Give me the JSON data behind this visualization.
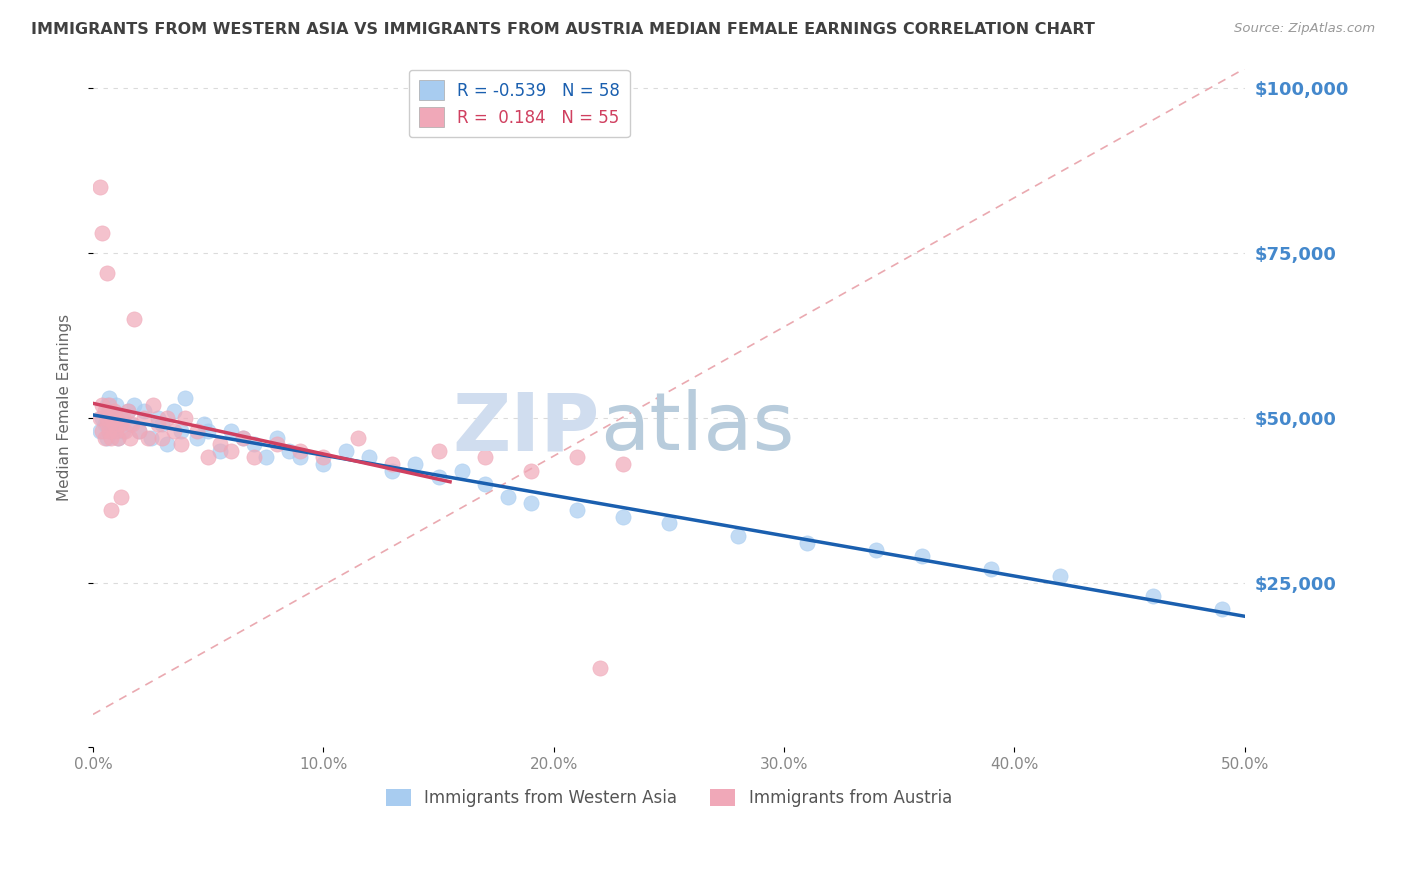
{
  "title": "IMMIGRANTS FROM WESTERN ASIA VS IMMIGRANTS FROM AUSTRIA MEDIAN FEMALE EARNINGS CORRELATION CHART",
  "source": "Source: ZipAtlas.com",
  "ylabel": "Median Female Earnings",
  "yticks": [
    0,
    25000,
    50000,
    75000,
    100000
  ],
  "ytick_labels": [
    "",
    "$25,000",
    "$50,000",
    "$75,000",
    "$100,000"
  ],
  "xmin": 0.0,
  "xmax": 0.5,
  "ymin": 5000,
  "ymax": 103000,
  "legend1_label": "Immigrants from Western Asia",
  "legend2_label": "Immigrants from Austria",
  "R1": -0.539,
  "N1": 58,
  "R2": 0.184,
  "N2": 55,
  "color_blue": "#A8CCF0",
  "color_pink": "#F0A8B8",
  "line_blue": "#1A5FAF",
  "line_pink": "#D04060",
  "diag_color": "#E8A0A8",
  "watermark_zip": "ZIP",
  "watermark_atlas": "atlas",
  "watermark_color": "#D0DDEF",
  "background_color": "#FFFFFF",
  "grid_color": "#CCCCCC",
  "title_color": "#404040",
  "axis_label_color": "#4488CC",
  "western_asia_x": [
    0.003,
    0.004,
    0.005,
    0.006,
    0.006,
    0.007,
    0.007,
    0.008,
    0.008,
    0.009,
    0.01,
    0.011,
    0.012,
    0.013,
    0.015,
    0.016,
    0.018,
    0.02,
    0.022,
    0.025,
    0.028,
    0.03,
    0.032,
    0.035,
    0.038,
    0.04,
    0.045,
    0.048,
    0.05,
    0.055,
    0.06,
    0.065,
    0.07,
    0.075,
    0.08,
    0.085,
    0.09,
    0.1,
    0.11,
    0.12,
    0.13,
    0.14,
    0.15,
    0.16,
    0.17,
    0.18,
    0.19,
    0.21,
    0.23,
    0.25,
    0.28,
    0.31,
    0.34,
    0.36,
    0.39,
    0.42,
    0.46,
    0.49
  ],
  "western_asia_y": [
    48000,
    50000,
    49000,
    52000,
    47000,
    51000,
    53000,
    48000,
    50000,
    49000,
    52000,
    47000,
    50000,
    48000,
    51000,
    49000,
    52000,
    48000,
    51000,
    47000,
    50000,
    49000,
    46000,
    51000,
    48000,
    53000,
    47000,
    49000,
    48000,
    45000,
    48000,
    47000,
    46000,
    44000,
    47000,
    45000,
    44000,
    43000,
    45000,
    44000,
    42000,
    43000,
    41000,
    42000,
    40000,
    38000,
    37000,
    36000,
    35000,
    34000,
    32000,
    31000,
    30000,
    29000,
    27000,
    26000,
    23000,
    21000
  ],
  "austria_x": [
    0.003,
    0.004,
    0.004,
    0.005,
    0.005,
    0.006,
    0.006,
    0.007,
    0.007,
    0.008,
    0.008,
    0.009,
    0.009,
    0.01,
    0.01,
    0.011,
    0.012,
    0.013,
    0.014,
    0.015,
    0.016,
    0.017,
    0.018,
    0.02,
    0.022,
    0.024,
    0.026,
    0.028,
    0.03,
    0.032,
    0.035,
    0.038,
    0.04,
    0.045,
    0.05,
    0.055,
    0.06,
    0.065,
    0.07,
    0.08,
    0.09,
    0.1,
    0.115,
    0.13,
    0.15,
    0.17,
    0.19,
    0.21,
    0.23,
    0.003,
    0.004,
    0.006,
    0.008,
    0.012,
    0.22
  ],
  "austria_y": [
    50000,
    48000,
    52000,
    47000,
    51000,
    49000,
    50000,
    48000,
    52000,
    47000,
    50000,
    49000,
    51000,
    48000,
    50000,
    47000,
    49000,
    50000,
    48000,
    51000,
    47000,
    49000,
    65000,
    48000,
    50000,
    47000,
    52000,
    49000,
    47000,
    50000,
    48000,
    46000,
    50000,
    48000,
    44000,
    46000,
    45000,
    47000,
    44000,
    46000,
    45000,
    44000,
    47000,
    43000,
    45000,
    44000,
    42000,
    44000,
    43000,
    85000,
    78000,
    72000,
    36000,
    38000,
    12000
  ]
}
